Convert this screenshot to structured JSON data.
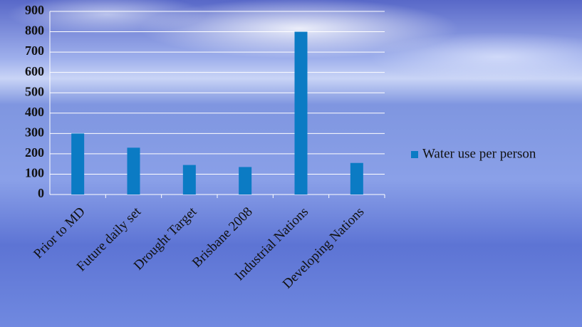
{
  "chart_data": {
    "type": "bar",
    "categories": [
      "Prior to MD",
      "Future daily set",
      "Drought Target",
      "Brisbane 2008",
      "Industrial Nations",
      "Developing Nations"
    ],
    "series": [
      {
        "name": "Water use per person",
        "color": "#0b7bc4",
        "values": [
          300,
          230,
          145,
          135,
          800,
          155
        ]
      }
    ],
    "ylim": [
      0,
      900
    ],
    "yticks": [
      0,
      100,
      200,
      300,
      400,
      500,
      600,
      700,
      800,
      900
    ],
    "grid": true,
    "legend": "right"
  }
}
